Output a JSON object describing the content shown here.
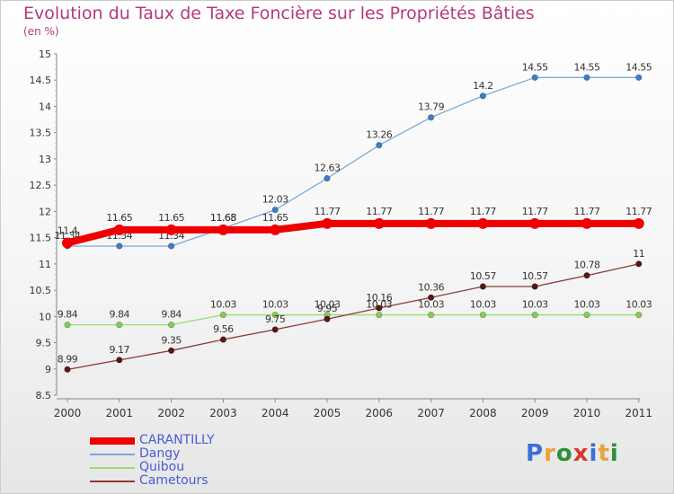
{
  "title": "Evolution du Taux de Taxe Foncière sur les Propriétés Bâties",
  "subtitle": "(en %)",
  "logo": {
    "text": "Proxiti",
    "letter_colors": [
      "#3b6fd6",
      "#e8a33a",
      "#2e8f3a",
      "#d8382f",
      "#3b6fd6",
      "#e8a33a",
      "#2e8f3a"
    ]
  },
  "chart_data": {
    "type": "line",
    "x": [
      "2000",
      "2001",
      "2002",
      "2003",
      "2004",
      "2005",
      "2006",
      "2007",
      "2008",
      "2009",
      "2010",
      "2011"
    ],
    "ylim": [
      8.5,
      15
    ],
    "yticks": [
      "8.5",
      "9",
      "9.5",
      "10",
      "10.5",
      "11",
      "11.5",
      "12",
      "12.5",
      "13",
      "13.5",
      "14",
      "14.5",
      "15"
    ],
    "grid": false,
    "legend_position": "bottom-left",
    "series": [
      {
        "name": "Dangy",
        "color": "#7aaad8",
        "marker": "#3b7fc4",
        "values": [
          11.34,
          11.34,
          11.34,
          11.68,
          12.03,
          12.63,
          13.26,
          13.79,
          14.2,
          14.55,
          14.55,
          14.55
        ],
        "labels": [
          "11.34",
          "11.34",
          "11.34",
          "11.68",
          "12.03",
          "12.63",
          "13.26",
          "13.79",
          "14.2",
          "14.55",
          "14.55",
          "14.55"
        ]
      },
      {
        "name": "Quibou",
        "color": "#99dd77",
        "marker": "#88cc55",
        "values": [
          9.84,
          9.84,
          9.84,
          10.03,
          10.03,
          10.03,
          10.03,
          10.03,
          10.03,
          10.03,
          10.03,
          10.03
        ],
        "labels": [
          "9.84",
          "9.84",
          "9.84",
          "10.03",
          "10.03",
          "10.03",
          "10.03",
          "10.03",
          "10.03",
          "10.03",
          "10.03",
          "10.03"
        ]
      },
      {
        "name": "Cametours",
        "color": "#8b3a3a",
        "marker": "#5a1515",
        "values": [
          8.99,
          9.17,
          9.35,
          9.56,
          9.75,
          9.95,
          10.16,
          10.36,
          10.57,
          10.57,
          10.78,
          11
        ],
        "labels": [
          "8.99",
          "9.17",
          "9.35",
          "9.56",
          "9.75",
          "9.95",
          "10.16",
          "10.36",
          "10.57",
          "10.57",
          "10.78",
          "11"
        ]
      },
      {
        "name": "CARANTILLY",
        "color": "#ee0000",
        "marker": "#ee0000",
        "thick": true,
        "values": [
          11.4,
          11.65,
          11.65,
          11.65,
          11.65,
          11.77,
          11.77,
          11.77,
          11.77,
          11.77,
          11.77,
          11.77
        ],
        "labels": [
          "11.4",
          "11.65",
          "11.65",
          "11.65",
          "11.65",
          "11.77",
          "11.77",
          "11.77",
          "11.77",
          "11.77",
          "11.77",
          "11.77"
        ]
      }
    ],
    "legend_order": [
      "CARANTILLY",
      "Dangy",
      "Quibou",
      "Cametours"
    ]
  }
}
